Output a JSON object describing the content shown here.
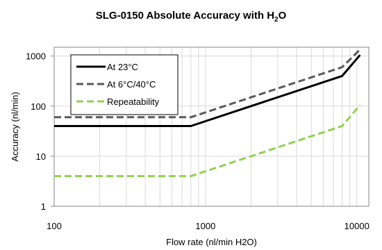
{
  "chart_data": {
    "type": "line",
    "title": "SLG-0150 Absolute Accuracy with H",
    "title_subscript": "2",
    "title_suffix": "O",
    "xlabel": "Flow rate (nl/min H2O)",
    "ylabel": "Accuracy (nl/min)",
    "x_scale": "log",
    "y_scale": "log",
    "xlim": [
      100,
      12000
    ],
    "ylim": [
      1,
      1500
    ],
    "x_ticks": [
      100,
      1000,
      10000
    ],
    "x_tick_labels": [
      "100",
      "1000",
      "10000"
    ],
    "y_ticks": [
      1,
      10,
      100,
      1000
    ],
    "y_tick_labels": [
      "1",
      "10",
      "100",
      "1000"
    ],
    "grid": "vertical minor + horizontal major",
    "legend_position": "top-left",
    "series": [
      {
        "name": "At 23°C",
        "color": "#000000",
        "style": "solid",
        "x": [
          100,
          800,
          8000,
          10500
        ],
        "y": [
          40,
          40,
          400,
          1050
        ]
      },
      {
        "name": "At 6°C/40°C",
        "color": "#595959",
        "style": "dashed",
        "x": [
          100,
          800,
          8000,
          10500
        ],
        "y": [
          60,
          60,
          600,
          1350
        ]
      },
      {
        "name": "Repeatability",
        "color": "#92d050",
        "style": "dashed",
        "x": [
          100,
          800,
          8000,
          10500
        ],
        "y": [
          4,
          4,
          40,
          105
        ]
      }
    ]
  }
}
